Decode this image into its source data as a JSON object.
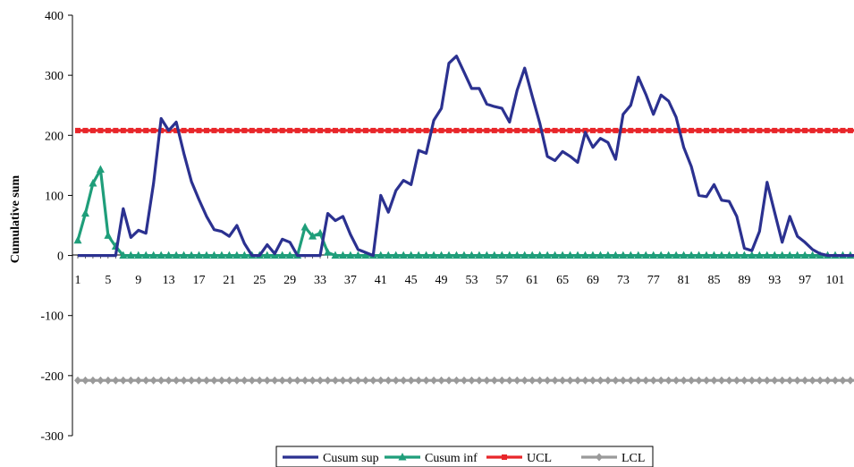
{
  "chart_data": {
    "type": "line",
    "title": "",
    "xlabel": "",
    "ylabel": "Cumulative sum",
    "ylim": [
      -300,
      400
    ],
    "yticks": [
      400,
      300,
      200,
      100,
      0,
      -100,
      -200,
      -300
    ],
    "xticks": [
      1,
      5,
      9,
      13,
      17,
      21,
      25,
      29,
      33,
      37,
      41,
      45,
      49,
      53,
      57,
      61,
      65,
      69,
      73,
      77,
      81,
      85,
      89,
      93,
      97,
      101
    ],
    "x_range": [
      1,
      104
    ],
    "legend_position": "bottom",
    "grid": false,
    "series": [
      {
        "name": "Cusum sup",
        "color": "#2b3190",
        "marker": "none",
        "points": [
          [
            1,
            0
          ],
          [
            2,
            0
          ],
          [
            3,
            0
          ],
          [
            4,
            0
          ],
          [
            5,
            0
          ],
          [
            6,
            0
          ],
          [
            7,
            78
          ],
          [
            8,
            30
          ],
          [
            9,
            42
          ],
          [
            10,
            37
          ],
          [
            11,
            120
          ],
          [
            12,
            228
          ],
          [
            13,
            208
          ],
          [
            14,
            222
          ],
          [
            15,
            170
          ],
          [
            16,
            123
          ],
          [
            17,
            93
          ],
          [
            18,
            65
          ],
          [
            19,
            43
          ],
          [
            20,
            40
          ],
          [
            21,
            32
          ],
          [
            22,
            50
          ],
          [
            23,
            20
          ],
          [
            24,
            0
          ],
          [
            25,
            0
          ],
          [
            26,
            18
          ],
          [
            27,
            3
          ],
          [
            28,
            27
          ],
          [
            29,
            22
          ],
          [
            30,
            0
          ],
          [
            31,
            0
          ],
          [
            32,
            0
          ],
          [
            33,
            0
          ],
          [
            34,
            70
          ],
          [
            35,
            58
          ],
          [
            36,
            65
          ],
          [
            37,
            35
          ],
          [
            38,
            10
          ],
          [
            39,
            5
          ],
          [
            40,
            0
          ],
          [
            41,
            100
          ],
          [
            42,
            72
          ],
          [
            43,
            108
          ],
          [
            44,
            125
          ],
          [
            45,
            118
          ],
          [
            46,
            175
          ],
          [
            47,
            170
          ],
          [
            48,
            225
          ],
          [
            49,
            245
          ],
          [
            50,
            320
          ],
          [
            51,
            332
          ],
          [
            52,
            305
          ],
          [
            53,
            278
          ],
          [
            54,
            278
          ],
          [
            55,
            252
          ],
          [
            56,
            248
          ],
          [
            57,
            245
          ],
          [
            58,
            222
          ],
          [
            59,
            275
          ],
          [
            60,
            312
          ],
          [
            61,
            265
          ],
          [
            62,
            220
          ],
          [
            63,
            165
          ],
          [
            64,
            158
          ],
          [
            65,
            173
          ],
          [
            66,
            165
          ],
          [
            67,
            155
          ],
          [
            68,
            205
          ],
          [
            69,
            180
          ],
          [
            70,
            195
          ],
          [
            71,
            188
          ],
          [
            72,
            160
          ],
          [
            73,
            235
          ],
          [
            74,
            250
          ],
          [
            75,
            297
          ],
          [
            76,
            268
          ],
          [
            77,
            235
          ],
          [
            78,
            267
          ],
          [
            79,
            257
          ],
          [
            80,
            230
          ],
          [
            81,
            180
          ],
          [
            82,
            148
          ],
          [
            83,
            100
          ],
          [
            84,
            98
          ],
          [
            85,
            118
          ],
          [
            86,
            92
          ],
          [
            87,
            90
          ],
          [
            88,
            65
          ],
          [
            89,
            12
          ],
          [
            90,
            8
          ],
          [
            91,
            40
          ],
          [
            92,
            122
          ],
          [
            93,
            72
          ],
          [
            94,
            22
          ],
          [
            95,
            65
          ],
          [
            96,
            32
          ],
          [
            97,
            22
          ],
          [
            98,
            10
          ],
          [
            99,
            3
          ],
          [
            100,
            0
          ],
          [
            101,
            0
          ],
          [
            102,
            0
          ],
          [
            103,
            0
          ],
          [
            104,
            0
          ]
        ]
      },
      {
        "name": "Cusum inf",
        "color": "#1f9e7a",
        "marker": "triangle",
        "points": [
          [
            1,
            25
          ],
          [
            2,
            70
          ],
          [
            3,
            120
          ],
          [
            4,
            143
          ],
          [
            5,
            33
          ],
          [
            6,
            15
          ],
          [
            7,
            0
          ],
          [
            8,
            0
          ],
          [
            9,
            0
          ],
          [
            10,
            0
          ],
          [
            11,
            0
          ],
          [
            12,
            0
          ],
          [
            13,
            0
          ],
          [
            14,
            0
          ],
          [
            15,
            0
          ],
          [
            16,
            0
          ],
          [
            17,
            0
          ],
          [
            18,
            0
          ],
          [
            19,
            0
          ],
          [
            20,
            0
          ],
          [
            21,
            0
          ],
          [
            22,
            0
          ],
          [
            23,
            0
          ],
          [
            24,
            0
          ],
          [
            25,
            0
          ],
          [
            26,
            0
          ],
          [
            27,
            0
          ],
          [
            28,
            0
          ],
          [
            29,
            0
          ],
          [
            30,
            0
          ],
          [
            31,
            47
          ],
          [
            32,
            32
          ],
          [
            33,
            37
          ],
          [
            34,
            5
          ],
          [
            35,
            0
          ],
          [
            36,
            0
          ],
          [
            37,
            0
          ],
          [
            38,
            0
          ],
          [
            39,
            0
          ],
          [
            40,
            0
          ],
          [
            41,
            0
          ],
          [
            42,
            0
          ],
          [
            43,
            0
          ],
          [
            44,
            0
          ],
          [
            45,
            0
          ],
          [
            46,
            0
          ],
          [
            47,
            0
          ],
          [
            48,
            0
          ],
          [
            49,
            0
          ],
          [
            50,
            0
          ],
          [
            51,
            0
          ],
          [
            52,
            0
          ],
          [
            53,
            0
          ],
          [
            54,
            0
          ],
          [
            55,
            0
          ],
          [
            56,
            0
          ],
          [
            57,
            0
          ],
          [
            58,
            0
          ],
          [
            59,
            0
          ],
          [
            60,
            0
          ],
          [
            61,
            0
          ],
          [
            62,
            0
          ],
          [
            63,
            0
          ],
          [
            64,
            0
          ],
          [
            65,
            0
          ],
          [
            66,
            0
          ],
          [
            67,
            0
          ],
          [
            68,
            0
          ],
          [
            69,
            0
          ],
          [
            70,
            0
          ],
          [
            71,
            0
          ],
          [
            72,
            0
          ],
          [
            73,
            0
          ],
          [
            74,
            0
          ],
          [
            75,
            0
          ],
          [
            76,
            0
          ],
          [
            77,
            0
          ],
          [
            78,
            0
          ],
          [
            79,
            0
          ],
          [
            80,
            0
          ],
          [
            81,
            0
          ],
          [
            82,
            0
          ],
          [
            83,
            0
          ],
          [
            84,
            0
          ],
          [
            85,
            0
          ],
          [
            86,
            0
          ],
          [
            87,
            0
          ],
          [
            88,
            0
          ],
          [
            89,
            0
          ],
          [
            90,
            0
          ],
          [
            91,
            0
          ],
          [
            92,
            0
          ],
          [
            93,
            0
          ],
          [
            94,
            0
          ],
          [
            95,
            0
          ],
          [
            96,
            0
          ],
          [
            97,
            0
          ],
          [
            98,
            0
          ],
          [
            99,
            0
          ],
          [
            100,
            0
          ],
          [
            101,
            0
          ],
          [
            102,
            0
          ],
          [
            103,
            0
          ],
          [
            104,
            0
          ]
        ]
      },
      {
        "name": "UCL",
        "color": "#e8262a",
        "marker": "square",
        "constant": 208
      },
      {
        "name": "LCL",
        "color": "#9a9a9a",
        "marker": "diamond",
        "constant": -208
      }
    ]
  }
}
